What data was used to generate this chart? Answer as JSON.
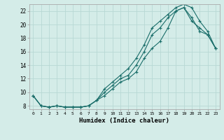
{
  "title": "",
  "xlabel": "Humidex (Indice chaleur)",
  "bg_color": "#d4ece8",
  "line_color": "#1a6e6a",
  "grid_color": "#b8d8d4",
  "xlim": [
    -0.5,
    23.5
  ],
  "ylim": [
    7.5,
    23.0
  ],
  "xticks": [
    0,
    1,
    2,
    3,
    4,
    5,
    6,
    7,
    8,
    9,
    10,
    11,
    12,
    13,
    14,
    15,
    16,
    17,
    18,
    19,
    20,
    21,
    22,
    23
  ],
  "yticks": [
    8,
    10,
    12,
    14,
    16,
    18,
    20,
    22
  ],
  "line1_x": [
    0,
    1,
    2,
    3,
    4,
    5,
    6,
    7,
    8,
    9,
    10,
    11,
    12,
    13,
    14,
    15,
    16,
    17,
    18,
    19,
    20,
    21,
    22,
    23
  ],
  "line1_y": [
    9.5,
    8.0,
    7.8,
    8.0,
    7.8,
    7.8,
    7.8,
    8.0,
    8.8,
    10.0,
    11.0,
    12.0,
    12.5,
    14.0,
    16.0,
    18.5,
    19.5,
    21.0,
    22.0,
    22.5,
    21.0,
    19.0,
    18.5,
    16.5
  ],
  "line2_x": [
    0,
    1,
    2,
    3,
    4,
    5,
    6,
    7,
    8,
    9,
    10,
    11,
    12,
    13,
    14,
    15,
    16,
    17,
    18,
    19,
    20,
    21,
    22,
    23
  ],
  "line2_y": [
    9.5,
    8.0,
    7.8,
    8.0,
    7.8,
    7.8,
    7.8,
    8.0,
    8.8,
    10.5,
    11.5,
    12.5,
    13.5,
    15.0,
    17.0,
    19.5,
    20.5,
    21.5,
    22.5,
    23.0,
    22.5,
    20.5,
    19.0,
    16.5
  ],
  "line3_x": [
    0,
    1,
    2,
    3,
    4,
    5,
    6,
    7,
    8,
    9,
    10,
    11,
    12,
    13,
    14,
    15,
    16,
    17,
    18,
    19,
    20,
    21,
    22,
    23
  ],
  "line3_y": [
    9.5,
    8.0,
    7.8,
    8.0,
    7.8,
    7.8,
    7.8,
    8.0,
    8.8,
    9.5,
    10.5,
    11.5,
    12.0,
    13.0,
    15.0,
    16.5,
    17.5,
    19.5,
    22.0,
    22.5,
    20.5,
    19.5,
    18.5,
    16.5
  ]
}
